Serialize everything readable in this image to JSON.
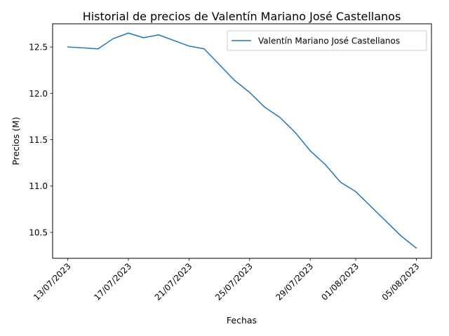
{
  "chart_data": {
    "type": "line",
    "title": "Historial de precios de Valentín Mariano José Castellanos",
    "xlabel": "Fechas",
    "ylabel": "Precios (M)",
    "x_ticks": [
      "13/07/2023",
      "17/07/2023",
      "21/07/2023",
      "25/07/2023",
      "29/07/2023",
      "01/08/2023",
      "05/08/2023"
    ],
    "y_ticks": [
      "10.5",
      "11.0",
      "11.5",
      "12.0",
      "12.5"
    ],
    "ylim": [
      10.22,
      12.75
    ],
    "xlim": [
      "2023-07-12",
      "2023-08-06"
    ],
    "grid": false,
    "legend_position": "upper right",
    "series": [
      {
        "name": "Valentín Mariano José Castellanos",
        "color": "#1f77b4",
        "x": [
          "2023-07-13",
          "2023-07-15",
          "2023-07-16",
          "2023-07-17",
          "2023-07-18",
          "2023-07-19",
          "2023-07-20",
          "2023-07-21",
          "2023-07-22",
          "2023-07-23",
          "2023-07-24",
          "2023-07-25",
          "2023-07-26",
          "2023-07-27",
          "2023-07-28",
          "2023-07-29",
          "2023-07-30",
          "2023-07-31",
          "2023-08-01",
          "2023-08-02",
          "2023-08-03",
          "2023-08-04",
          "2023-08-05"
        ],
        "values": [
          12.5,
          12.48,
          12.59,
          12.65,
          12.6,
          12.63,
          12.57,
          12.51,
          12.48,
          12.31,
          12.14,
          12.01,
          11.85,
          11.74,
          11.58,
          11.38,
          11.23,
          11.04,
          10.94,
          10.78,
          10.62,
          10.46,
          10.33
        ]
      }
    ]
  }
}
